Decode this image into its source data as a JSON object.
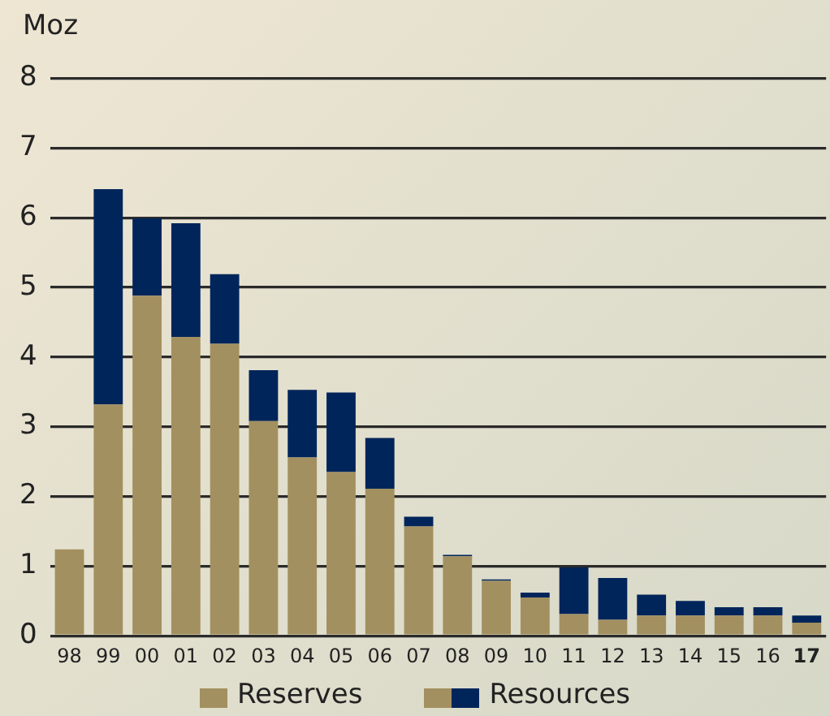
{
  "chart_data": {
    "type": "bar",
    "ylabel": "Moz",
    "stacked": true,
    "grid": "y",
    "legend": "bottom",
    "categories": [
      "98",
      "99",
      "00",
      "01",
      "02",
      "03",
      "04",
      "05",
      "06",
      "07",
      "08",
      "09",
      "10",
      "11",
      "12",
      "13",
      "14",
      "15",
      "16",
      "17"
    ],
    "series": [
      {
        "name": "Reserves",
        "color": "#a39060",
        "values": [
          1.24,
          3.32,
          4.88,
          4.29,
          4.19,
          3.08,
          2.56,
          2.35,
          2.11,
          1.57,
          1.14,
          0.79,
          0.55,
          0.31,
          0.23,
          0.29,
          0.29,
          0.29,
          0.29,
          0.19
        ]
      },
      {
        "name": "Resources",
        "color": "#00255a",
        "values": [
          0,
          3.09,
          1.11,
          1.63,
          1.0,
          0.73,
          0.97,
          1.14,
          0.73,
          0.14,
          0.02,
          0.02,
          0.07,
          0.67,
          0.6,
          0.3,
          0.21,
          0.12,
          0.12,
          0.1
        ]
      }
    ],
    "ylim": [
      0,
      8
    ],
    "yticks": [
      0,
      1,
      2,
      3,
      4,
      5,
      6,
      7,
      8
    ]
  }
}
